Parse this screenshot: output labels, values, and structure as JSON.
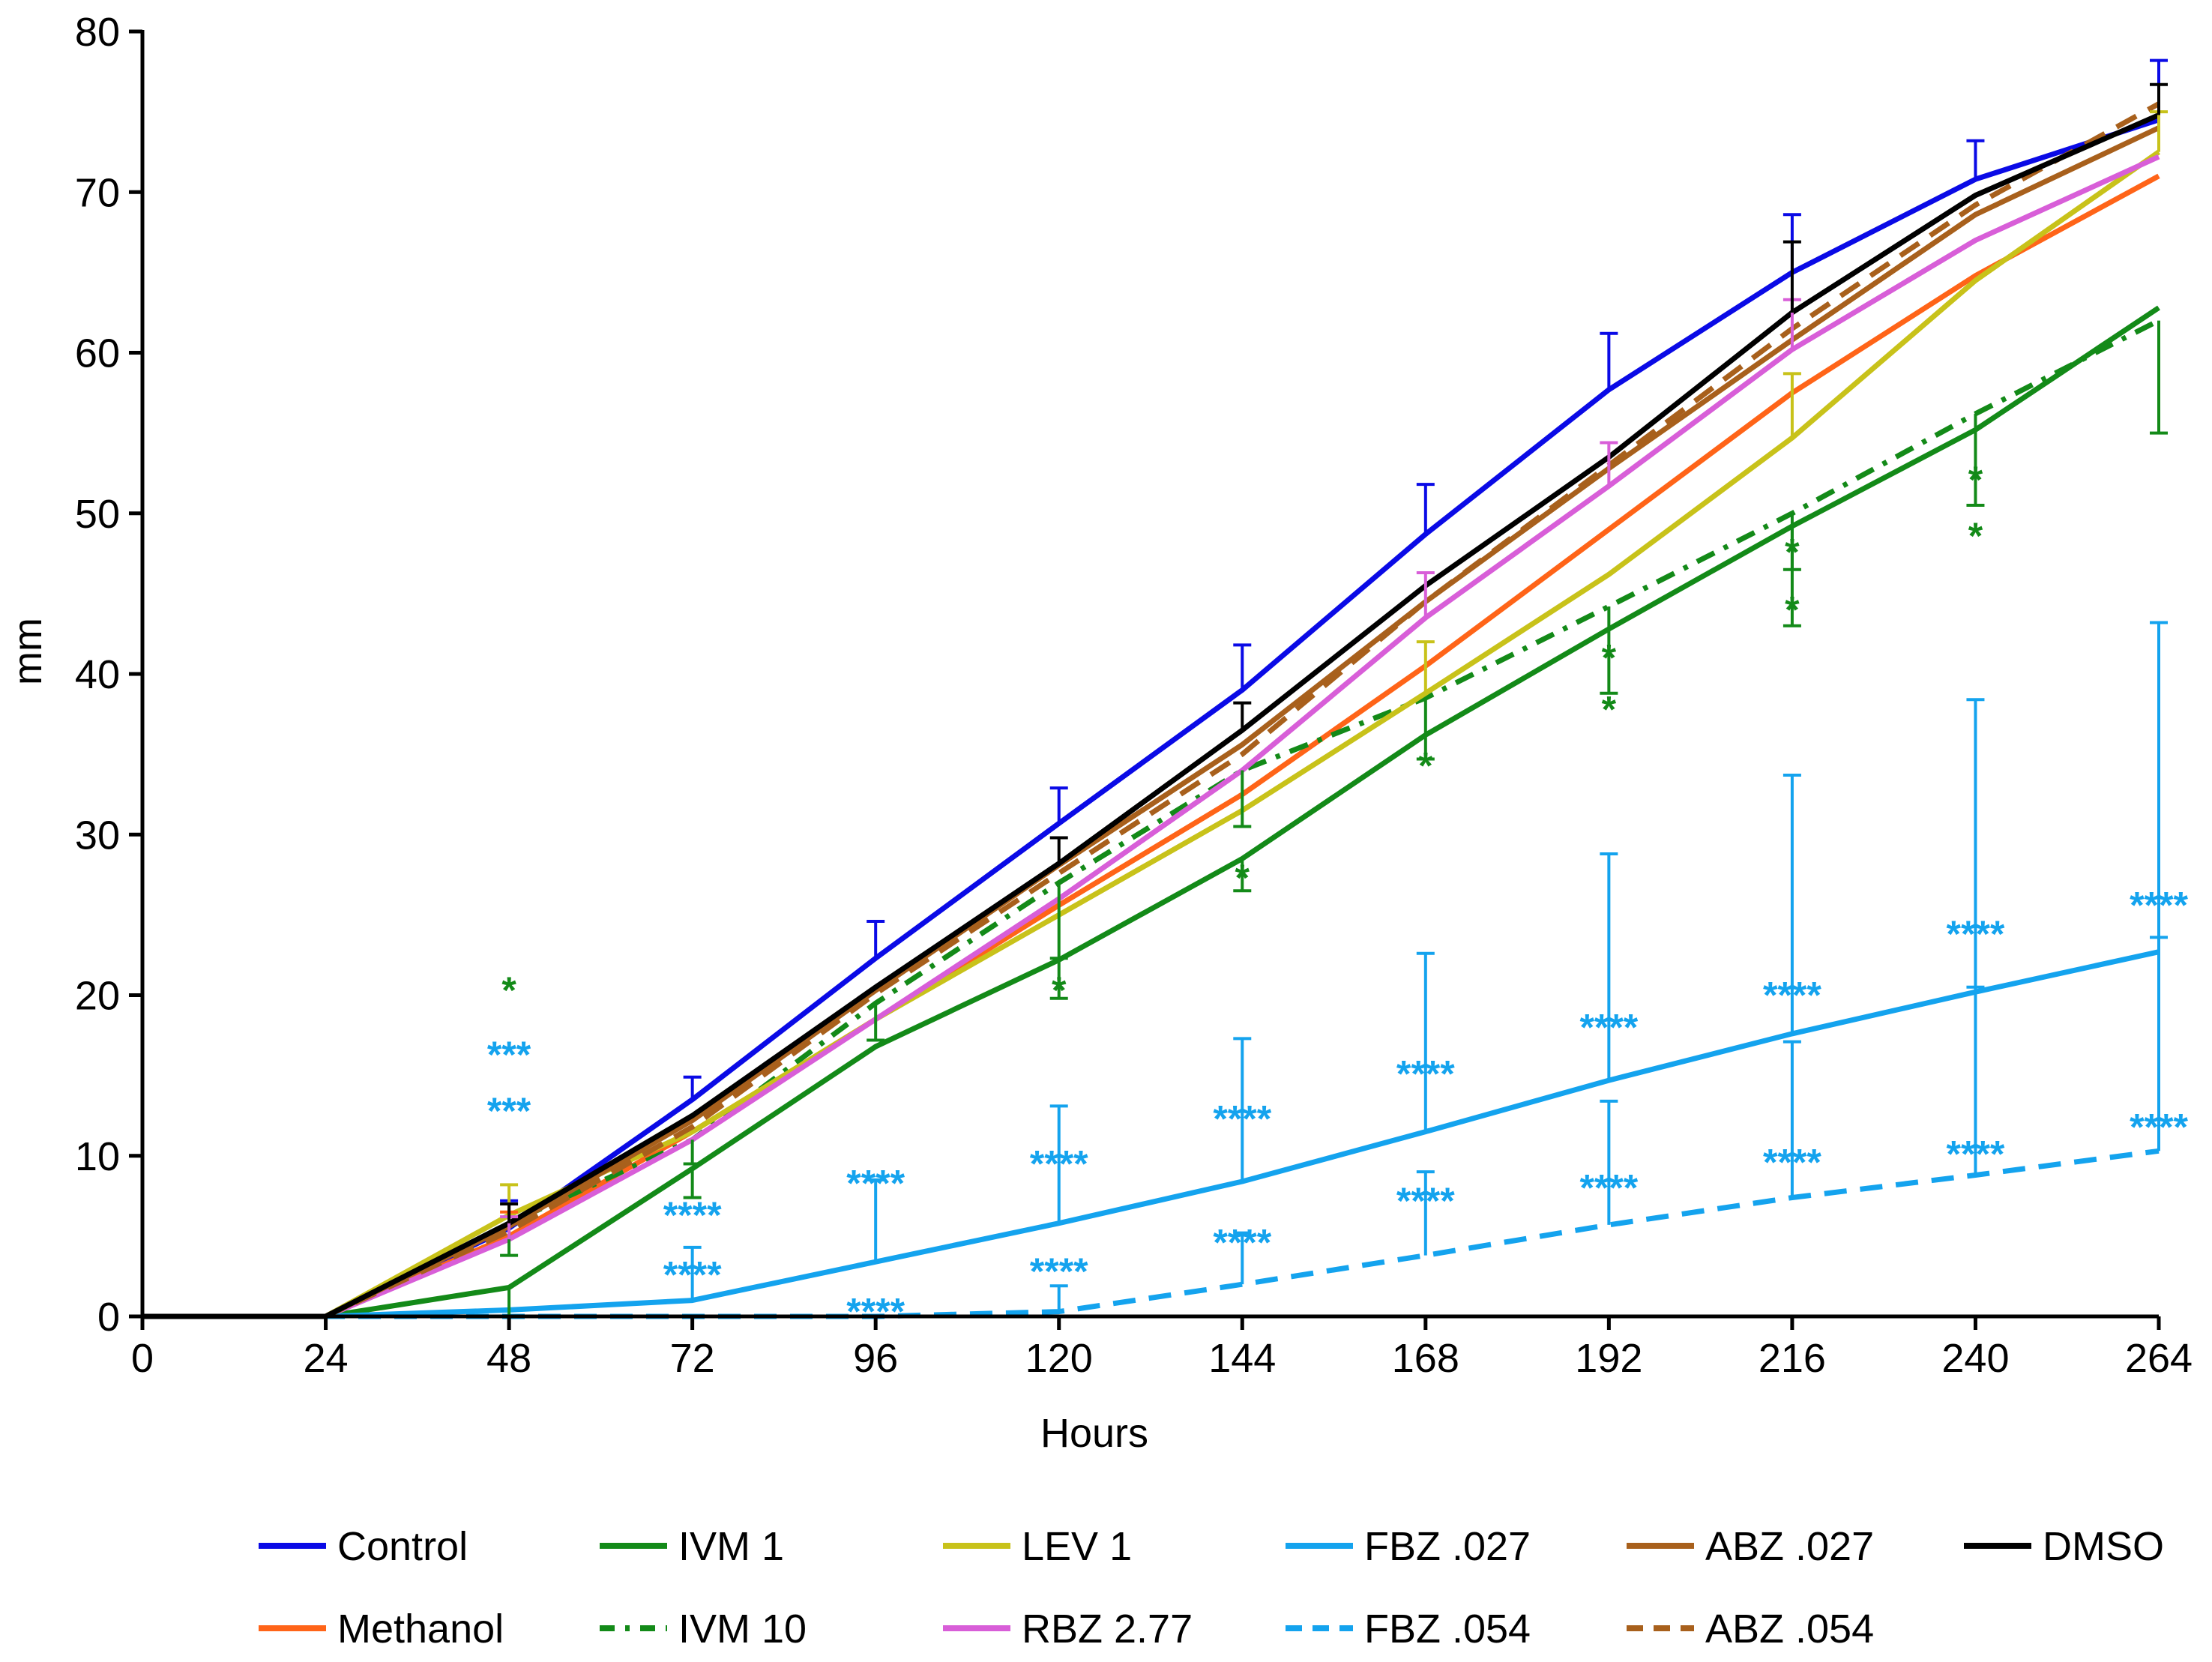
{
  "chart_data": {
    "type": "line",
    "title": "",
    "xlabel": "Hours",
    "ylabel": "mm",
    "xlim": [
      0,
      264
    ],
    "ylim": [
      0,
      80
    ],
    "x_ticks": [
      0,
      24,
      48,
      72,
      96,
      120,
      144,
      168,
      192,
      216,
      240,
      264
    ],
    "y_ticks": [
      0,
      10,
      20,
      30,
      40,
      50,
      60,
      70,
      80
    ],
    "x": [
      0,
      24,
      48,
      72,
      96,
      120,
      144,
      168,
      192,
      216,
      240,
      264
    ],
    "series": [
      {
        "name": "Control",
        "color": "#0a0ae6",
        "dash": "solid",
        "values": [
          0,
          0,
          5.5,
          13.5,
          22.3,
          30.7,
          39,
          48.7,
          57.7,
          65,
          70.8,
          74.5
        ],
        "err_upper": [
          null,
          null,
          7.2,
          14.9,
          24.6,
          32.9,
          41.8,
          51.8,
          61.2,
          68.6,
          73.2,
          78.2
        ]
      },
      {
        "name": "Methanol",
        "color": "#ff6418",
        "dash": "solid",
        "values": [
          0,
          0,
          5,
          11.5,
          18.5,
          25.6,
          32.5,
          40.5,
          49,
          57.5,
          64.8,
          71
        ],
        "err_upper": [
          null,
          null,
          6.5,
          null,
          null,
          null,
          null,
          null,
          null,
          null,
          null,
          null
        ]
      },
      {
        "name": "IVM 1",
        "color": "#138a18",
        "dash": "solid",
        "values": [
          0,
          0,
          1.8,
          9.2,
          16.8,
          22.2,
          28.5,
          36.2,
          42.8,
          49.2,
          55.2,
          62.8
        ],
        "err_lower": [
          null,
          null,
          0,
          7.4,
          null,
          19.8,
          26.5,
          null,
          null,
          43,
          null,
          null
        ]
      },
      {
        "name": "IVM 10",
        "color": "#138a18",
        "dash": "dashdot",
        "values": [
          0,
          0,
          5.8,
          11,
          19.5,
          27,
          34,
          38.5,
          44.2,
          50,
          56.2,
          62
        ],
        "err_lower": [
          null,
          null,
          3.8,
          9.5,
          17.2,
          22.3,
          30.5,
          34.7,
          38.8,
          46.5,
          50.5,
          55
        ]
      },
      {
        "name": "LEV 1",
        "color": "#c8c21a",
        "dash": "solid",
        "values": [
          0,
          0,
          6.3,
          11.5,
          18.5,
          25,
          31.5,
          38.8,
          46.2,
          54.7,
          64.5,
          72.5
        ],
        "err_upper": [
          null,
          null,
          8.2,
          null,
          null,
          null,
          null,
          42,
          null,
          58.7,
          null,
          75
        ]
      },
      {
        "name": "RBZ 2.77",
        "color": "#d85ed8",
        "dash": "solid",
        "values": [
          0,
          0,
          4.8,
          11,
          18.5,
          26,
          34,
          43.5,
          51.7,
          60.2,
          67,
          72.2
        ],
        "err_upper": [
          null,
          null,
          6.2,
          null,
          null,
          null,
          null,
          46.3,
          54.4,
          63.3,
          null,
          null
        ]
      },
      {
        "name": "FBZ .027",
        "color": "#14a3ee",
        "dash": "solid",
        "values": [
          0,
          0,
          0.4,
          1,
          3.4,
          5.8,
          8.4,
          11.5,
          14.7,
          17.6,
          20.2,
          22.7
        ],
        "err_upper": [
          null,
          null,
          null,
          4.3,
          8.5,
          13.1,
          17.3,
          22.6,
          28.8,
          33.7,
          38.4,
          43.2
        ]
      },
      {
        "name": "FBZ .054",
        "color": "#14a3ee",
        "dash": "dashed",
        "values": [
          0,
          0,
          0,
          0,
          0,
          0.3,
          2,
          3.8,
          5.7,
          7.4,
          8.8,
          10.3
        ],
        "err_upper": [
          null,
          null,
          null,
          null,
          null,
          1.9,
          5.2,
          9,
          13.4,
          17.1,
          20.5,
          23.6
        ]
      },
      {
        "name": "ABZ .027",
        "color": "#a8601c",
        "dash": "solid",
        "values": [
          0,
          0,
          5.6,
          12.2,
          20.3,
          28.1,
          35.6,
          44.5,
          52.8,
          60.8,
          68.6,
          74
        ]
      },
      {
        "name": "ABZ .054",
        "color": "#a8601c",
        "dash": "dashed",
        "values": [
          0,
          0,
          5.3,
          11.8,
          20.1,
          27.6,
          35,
          44.5,
          53,
          61.5,
          69.2,
          75.5
        ]
      },
      {
        "name": "DMSO",
        "color": "#000000",
        "dash": "solid",
        "values": [
          0,
          0,
          5.8,
          12.5,
          20.5,
          28.2,
          36.5,
          45.5,
          53.5,
          62.5,
          69.8,
          74.8
        ],
        "err_upper": [
          null,
          null,
          7,
          null,
          null,
          29.8,
          38.2,
          null,
          null,
          66.9,
          null,
          76.7
        ]
      }
    ],
    "annotations": [
      {
        "x": 48,
        "y": 19.5,
        "text": "*",
        "color": "#138a18"
      },
      {
        "x": 48,
        "y": 15.5,
        "text": "***",
        "color": "#14a3ee"
      },
      {
        "x": 48,
        "y": 12,
        "text": "***",
        "color": "#14a3ee"
      },
      {
        "x": 72,
        "y": 5.5,
        "text": "****",
        "color": "#14a3ee"
      },
      {
        "x": 72,
        "y": 1.8,
        "text": "****",
        "color": "#14a3ee"
      },
      {
        "x": 96,
        "y": 7.5,
        "text": "****",
        "color": "#14a3ee"
      },
      {
        "x": 96,
        "y": -0.5,
        "text": "****",
        "color": "#14a3ee"
      },
      {
        "x": 120,
        "y": 19.5,
        "text": "*",
        "color": "#138a18"
      },
      {
        "x": 120,
        "y": 8.7,
        "text": "****",
        "color": "#14a3ee"
      },
      {
        "x": 120,
        "y": 2,
        "text": "****",
        "color": "#14a3ee"
      },
      {
        "x": 144,
        "y": 26.5,
        "text": "*",
        "color": "#138a18"
      },
      {
        "x": 144,
        "y": 11.5,
        "text": "****",
        "color": "#14a3ee"
      },
      {
        "x": 144,
        "y": 3.8,
        "text": "****",
        "color": "#14a3ee"
      },
      {
        "x": 168,
        "y": 33.5,
        "text": "*",
        "color": "#138a18"
      },
      {
        "x": 168,
        "y": 14.3,
        "text": "****",
        "color": "#14a3ee"
      },
      {
        "x": 168,
        "y": 6.4,
        "text": "****",
        "color": "#14a3ee"
      },
      {
        "x": 192,
        "y": 40.2,
        "text": "*",
        "color": "#138a18"
      },
      {
        "x": 192,
        "y": 37,
        "text": "*",
        "color": "#138a18"
      },
      {
        "x": 192,
        "y": 17.2,
        "text": "****",
        "color": "#14a3ee"
      },
      {
        "x": 192,
        "y": 7.2,
        "text": "****",
        "color": "#14a3ee"
      },
      {
        "x": 216,
        "y": 46.8,
        "text": "*",
        "color": "#138a18"
      },
      {
        "x": 216,
        "y": 43.2,
        "text": "*",
        "color": "#138a18"
      },
      {
        "x": 216,
        "y": 19.2,
        "text": "****",
        "color": "#14a3ee"
      },
      {
        "x": 216,
        "y": 8.8,
        "text": "****",
        "color": "#14a3ee"
      },
      {
        "x": 240,
        "y": 51.3,
        "text": "*",
        "color": "#138a18"
      },
      {
        "x": 240,
        "y": 47.8,
        "text": "*",
        "color": "#138a18"
      },
      {
        "x": 240,
        "y": 23,
        "text": "****",
        "color": "#14a3ee"
      },
      {
        "x": 240,
        "y": 9.3,
        "text": "****",
        "color": "#14a3ee"
      },
      {
        "x": 264,
        "y": 24.8,
        "text": "****",
        "color": "#14a3ee"
      },
      {
        "x": 264,
        "y": 11,
        "text": "****",
        "color": "#14a3ee"
      }
    ],
    "legend": {
      "position": "bottom",
      "rows": [
        [
          "Control",
          "IVM 1",
          "LEV 1",
          "FBZ .027",
          "ABZ .027",
          "DMSO"
        ],
        [
          "Methanol",
          "IVM 10",
          "RBZ 2.77",
          "FBZ .054",
          "ABZ .054"
        ]
      ]
    }
  }
}
